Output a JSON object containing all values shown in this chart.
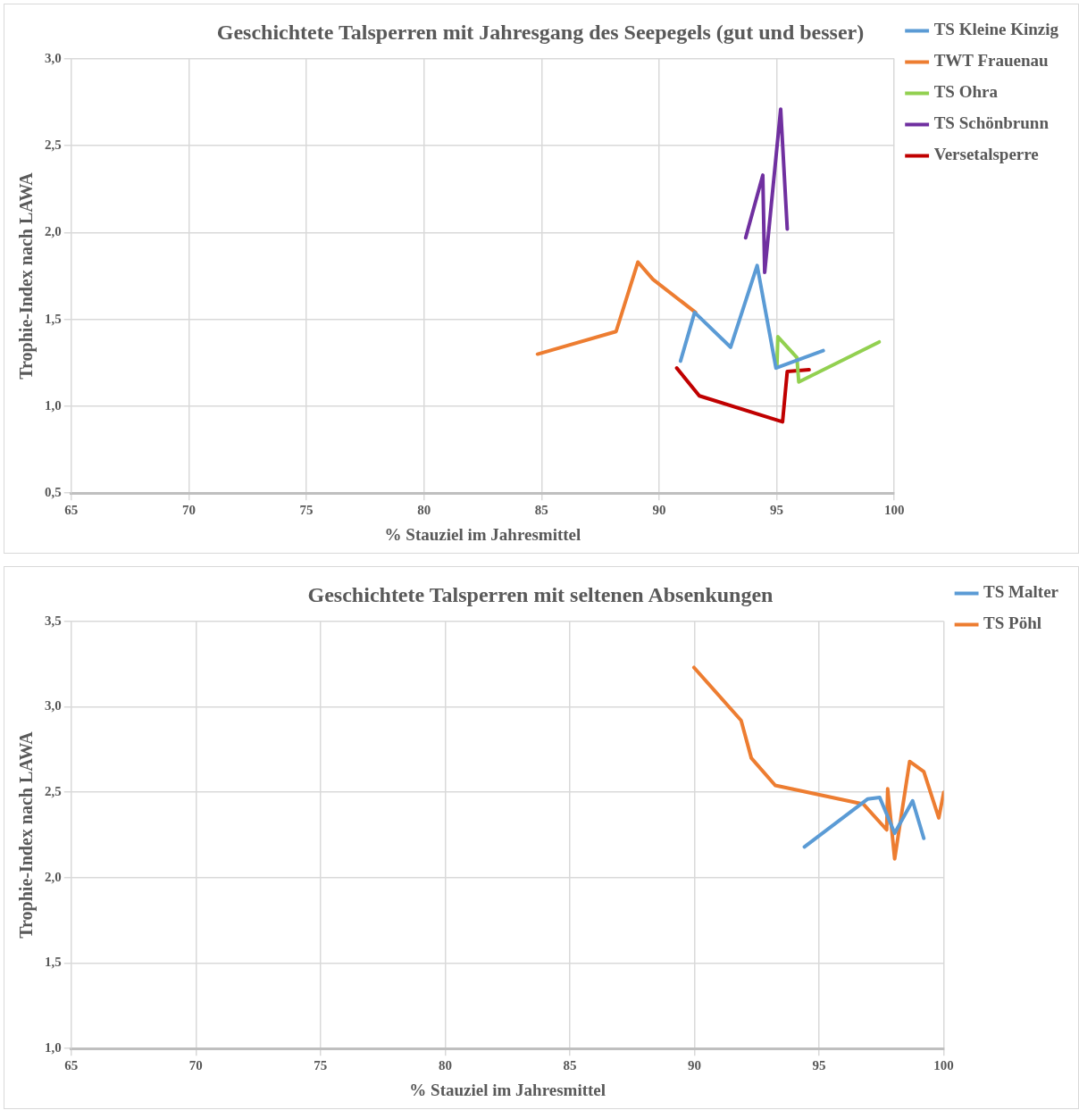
{
  "chart_data": [
    {
      "type": "line",
      "title": "Geschichtete Talsperren mit Jahresgang des Seepegels (gut und besser)",
      "xlabel": "% Stauziel im Jahresmittel",
      "ylabel": "Trophie-Index nach LAWA",
      "xlim": [
        65,
        100
      ],
      "xticks": [
        65,
        70,
        75,
        80,
        85,
        90,
        95,
        100
      ],
      "ylim": [
        0.5,
        3.0
      ],
      "yticks": [
        {
          "value": 0.5,
          "label": "0,5"
        },
        {
          "value": 1.0,
          "label": "1,0"
        },
        {
          "value": 1.5,
          "label": "1,5"
        },
        {
          "value": 2.0,
          "label": "2,0"
        },
        {
          "value": 2.5,
          "label": "2,5"
        },
        {
          "value": 3.0,
          "label": "3,0"
        }
      ],
      "grid": true,
      "legend": "right",
      "marker": "none",
      "line_style": "solid",
      "series": [
        {
          "name": "TS Kleine Kinzig",
          "color": "#5b9bd5",
          "x": [
            90.91,
            91.51,
            93.04,
            94.17,
            94.97,
            96.98
          ],
          "values": [
            1.26,
            1.54,
            1.34,
            1.81,
            1.22,
            1.32
          ]
        },
        {
          "name": "TWT Frauenau",
          "color": "#ed7d31",
          "x": [
            84.83,
            88.17,
            89.1,
            89.74,
            91.55
          ],
          "values": [
            1.3,
            1.43,
            1.83,
            1.73,
            1.54
          ]
        },
        {
          "name": "TS Ohra",
          "color": "#92d050",
          "x": [
            95.01,
            95.05,
            95.86,
            95.94,
            99.36
          ],
          "values": [
            1.23,
            1.4,
            1.28,
            1.14,
            1.37
          ]
        },
        {
          "name": "TS Schönbrunn",
          "color": "#7030a0",
          "x": [
            93.68,
            94.41,
            94.49,
            95.17,
            95.45
          ],
          "values": [
            1.97,
            2.33,
            1.77,
            2.71,
            2.02
          ]
        },
        {
          "name": "Versetalsperre",
          "color": "#c00000",
          "x": [
            90.75,
            91.71,
            95.25,
            95.45,
            96.38
          ],
          "values": [
            1.22,
            1.06,
            0.91,
            1.2,
            1.21
          ]
        }
      ]
    },
    {
      "type": "line",
      "title": "Geschichtete Talsperren mit seltenen Absenkungen",
      "xlabel": "% Stauziel im Jahresmittel",
      "ylabel": "Trophie-Index nach LAWA",
      "xlim": [
        65,
        100
      ],
      "xticks": [
        65,
        70,
        75,
        80,
        85,
        90,
        95,
        100
      ],
      "ylim": [
        1.0,
        3.5
      ],
      "yticks": [
        {
          "value": 1.0,
          "label": "1,0"
        },
        {
          "value": 1.5,
          "label": "1,5"
        },
        {
          "value": 2.0,
          "label": "2,0"
        },
        {
          "value": 2.5,
          "label": "2,5"
        },
        {
          "value": 3.0,
          "label": "3,0"
        },
        {
          "value": 3.5,
          "label": "3,5"
        }
      ],
      "grid": true,
      "legend": "right",
      "marker": "none",
      "line_style": "solid",
      "series": [
        {
          "name": "TS Malter",
          "color": "#5b9bd5",
          "x": [
            94.41,
            96.94,
            97.43,
            98.03,
            98.75,
            99.2
          ],
          "values": [
            2.18,
            2.46,
            2.47,
            2.26,
            2.45,
            2.23
          ]
        },
        {
          "name": "TS Pöhl",
          "color": "#ed7d31",
          "x": [
            89.98,
            91.87,
            92.28,
            93.24,
            96.78,
            97.71,
            97.75,
            98.03,
            98.63,
            99.2,
            99.8,
            100.0
          ],
          "values": [
            3.23,
            2.92,
            2.7,
            2.54,
            2.43,
            2.28,
            2.52,
            2.11,
            2.68,
            2.62,
            2.35,
            2.5
          ]
        }
      ]
    }
  ]
}
